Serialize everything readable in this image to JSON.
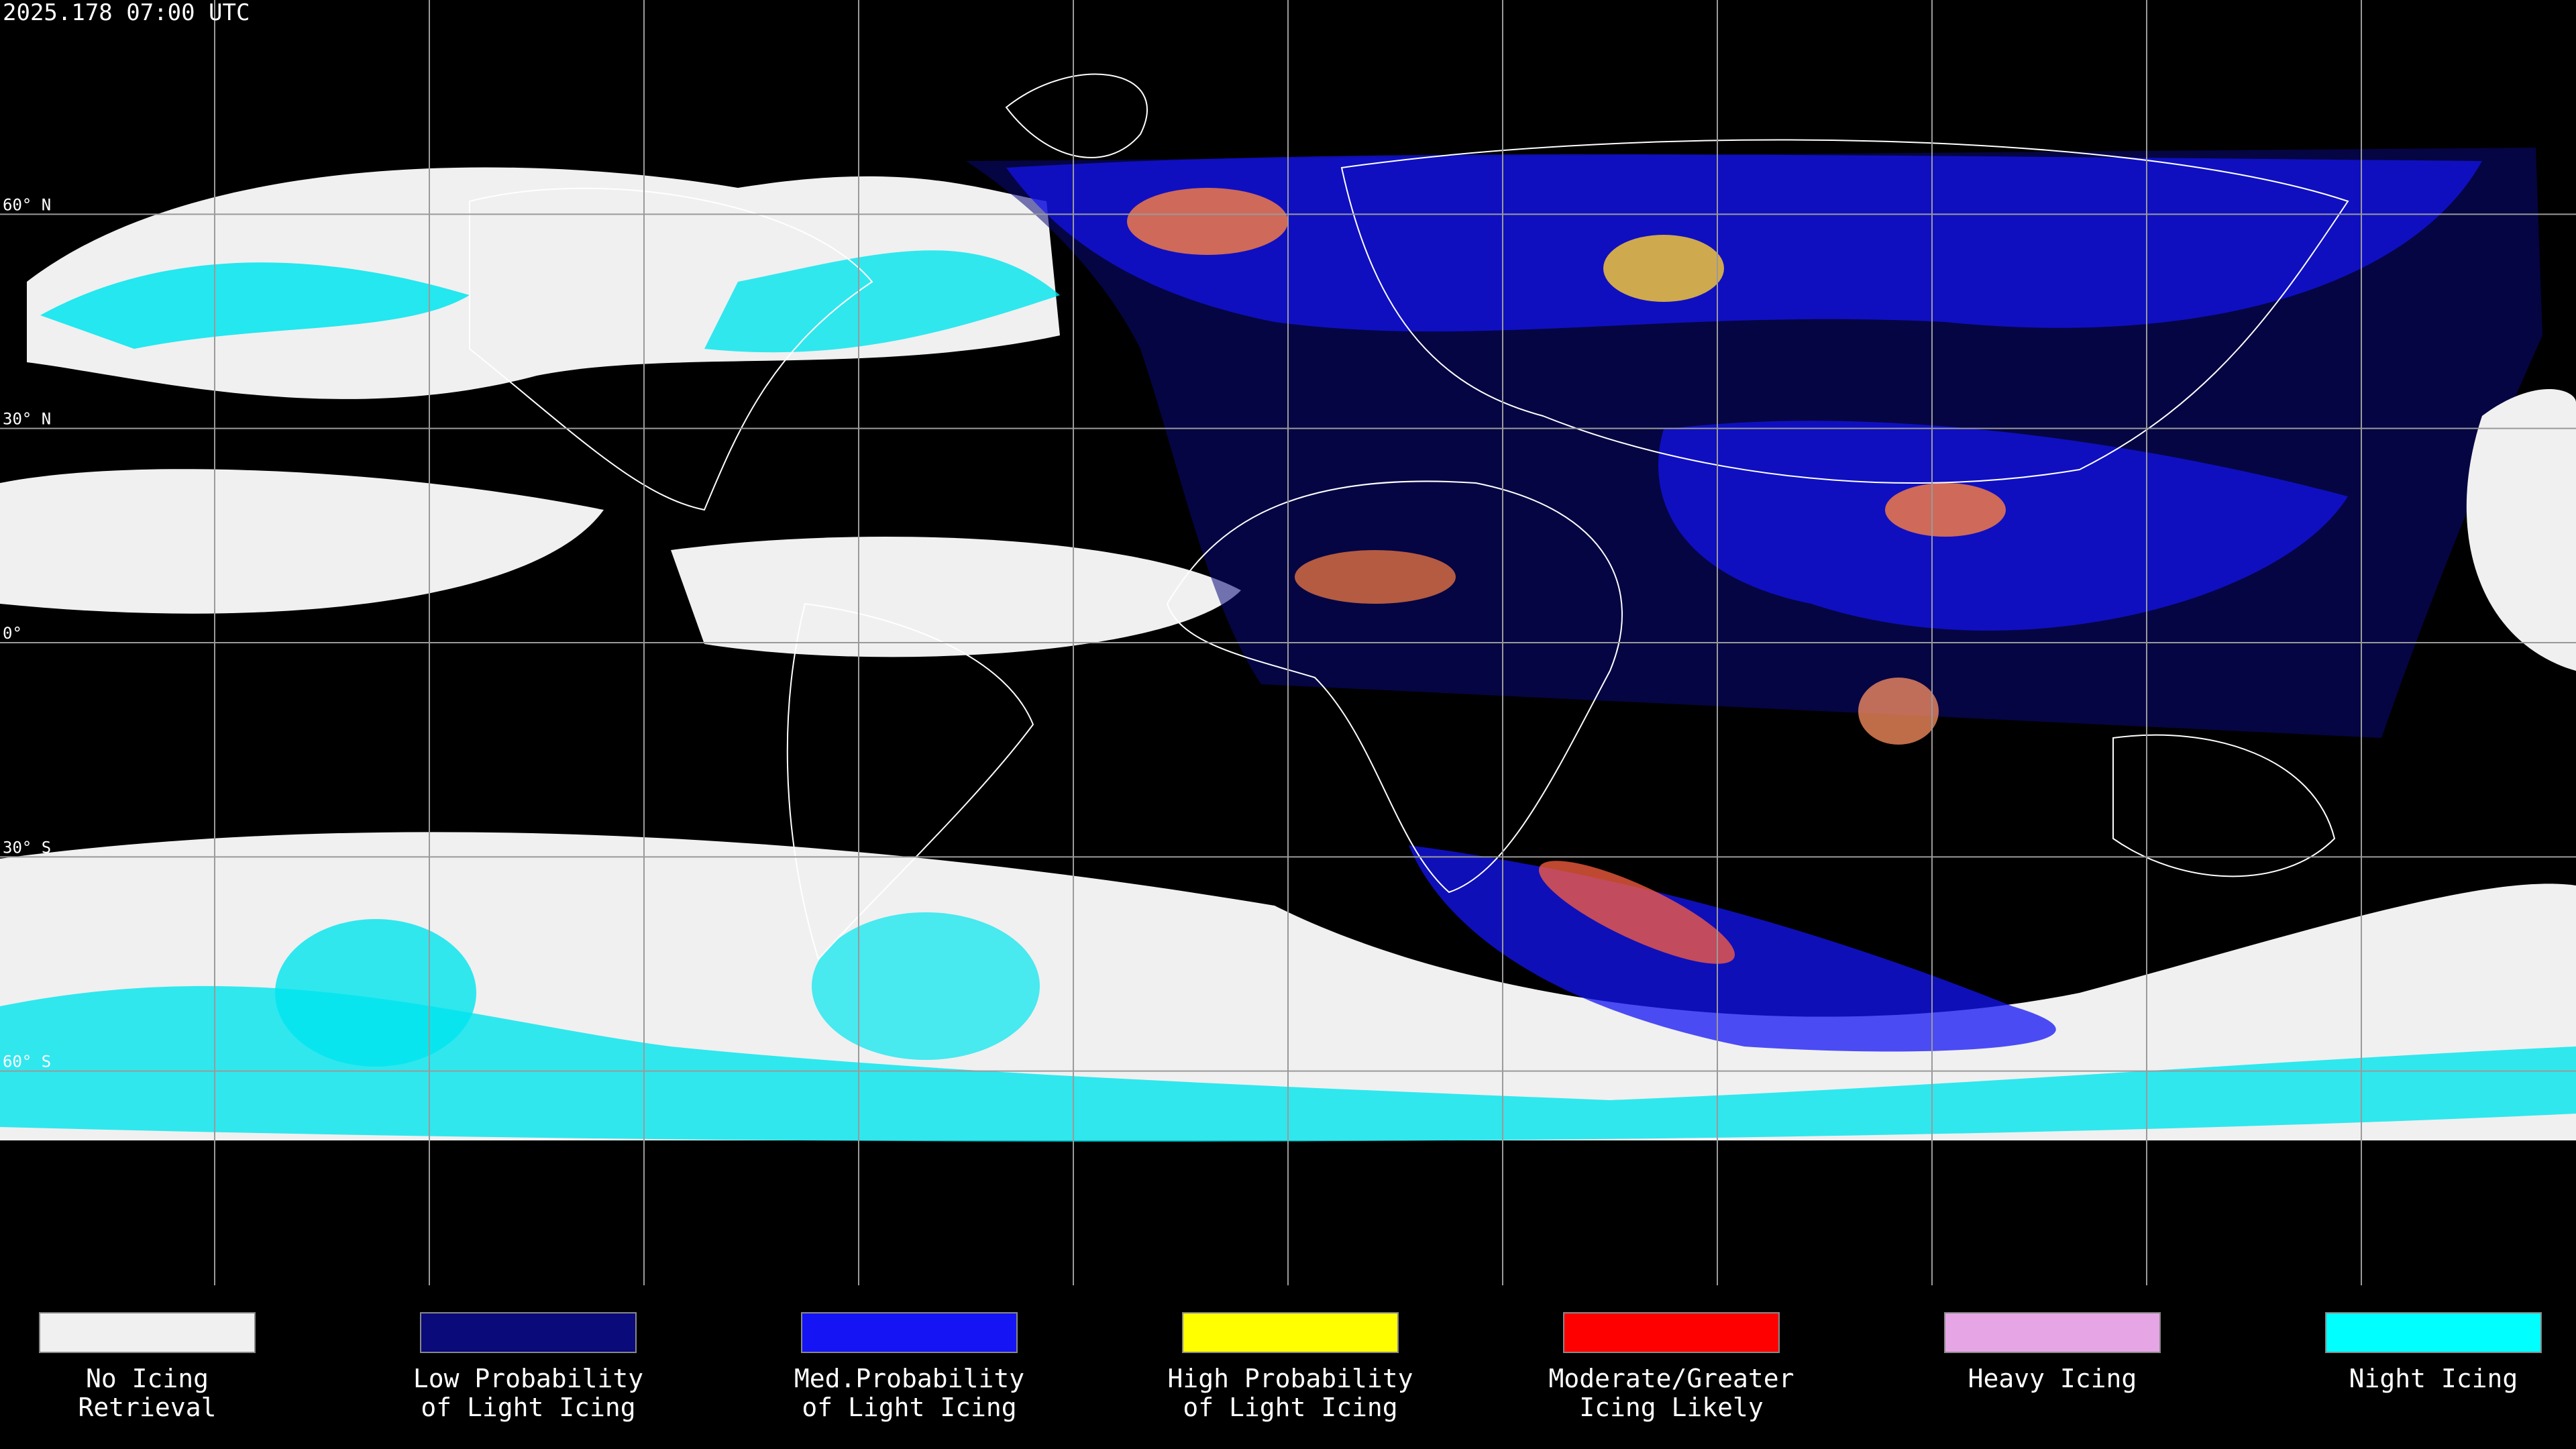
{
  "timestamp": "2025.178 07:00 UTC",
  "latitude_labels": [
    "60° N",
    "30° N",
    "0°",
    "30° S",
    "60° S"
  ],
  "legend": [
    {
      "lines": [
        "No Icing",
        "Retrieval"
      ],
      "color": "#f0f0f0"
    },
    {
      "lines": [
        "Low Probability",
        "of Light Icing"
      ],
      "color": "#0a0a7a"
    },
    {
      "lines": [
        "Med.Probability",
        "of Light Icing"
      ],
      "color": "#1414f5"
    },
    {
      "lines": [
        "High Probability",
        "of Light Icing"
      ],
      "color": "#ffff00"
    },
    {
      "lines": [
        "Moderate/Greater",
        "Icing Likely"
      ],
      "color": "#ff0000"
    },
    {
      "lines": [
        "Heavy Icing"
      ],
      "color": "#e6a6e6"
    },
    {
      "lines": [
        "Night Icing"
      ],
      "color": "#00ffff"
    }
  ]
}
